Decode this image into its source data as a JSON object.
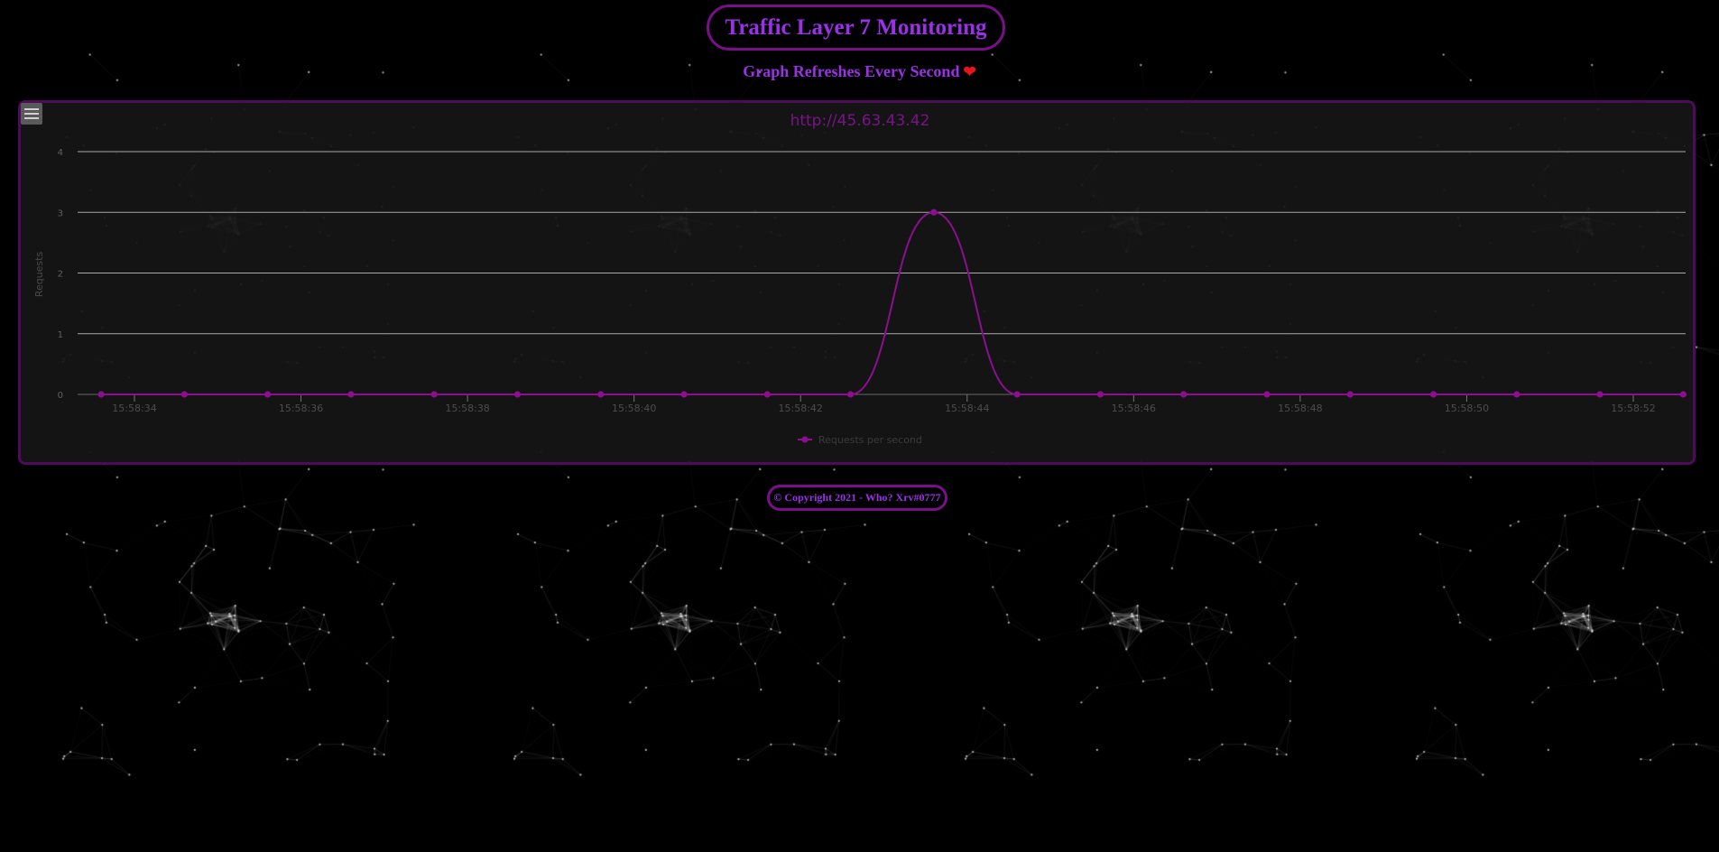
{
  "header": {
    "title": "Traffic Layer 7 Monitoring",
    "subtitle": "Graph Refreshes Every Second",
    "heart": "❤"
  },
  "chart_data": {
    "type": "line",
    "title": "http://45.63.43.42",
    "ylabel": "Requests",
    "xlabel": "",
    "ylim": [
      0,
      4
    ],
    "yticks": [
      "0",
      "1",
      "2",
      "3",
      "4"
    ],
    "xticks": [
      "15:58:34",
      "15:58:36",
      "15:58:38",
      "15:58:40",
      "15:58:42",
      "15:58:44",
      "15:58:46",
      "15:58:48",
      "15:58:50",
      "15:58:52"
    ],
    "series": [
      {
        "name": "Requests per second",
        "x": [
          "15:58:33.6",
          "15:58:34.6",
          "15:58:35.6",
          "15:58:36.6",
          "15:58:37.6",
          "15:58:38.6",
          "15:58:39.6",
          "15:58:40.6",
          "15:58:41.6",
          "15:58:42.6",
          "15:58:43.6",
          "15:58:44.6",
          "15:58:45.6",
          "15:58:46.6",
          "15:58:47.6",
          "15:58:48.6",
          "15:58:49.6",
          "15:58:50.6",
          "15:58:51.6",
          "15:58:52.6"
        ],
        "values": [
          0,
          0,
          0,
          0,
          0,
          0,
          0,
          0,
          0,
          0,
          3,
          0,
          0,
          0,
          0,
          0,
          0,
          0,
          0,
          0
        ],
        "color": "#8b0f8f"
      }
    ],
    "grid": true,
    "legend": "bottom"
  },
  "footer": {
    "copyright": "© Copyright 2021 - Who? Xrv#0777"
  },
  "colors": {
    "accent": "#9b30e8",
    "border": "#7a0f8a",
    "line": "#8b0f8f"
  },
  "icons": {
    "menu": "hamburger-menu-icon"
  }
}
